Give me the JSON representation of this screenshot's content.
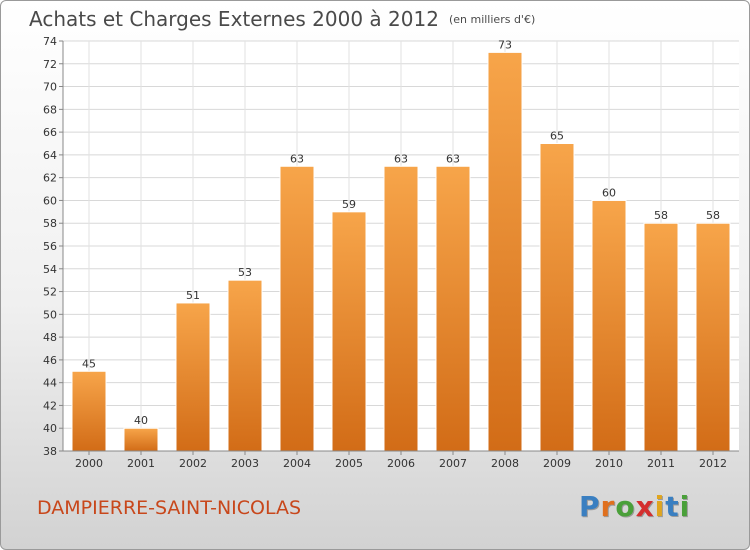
{
  "header": {
    "title": "Achats et Charges Externes 2000 à 2012",
    "unit": "(en milliers d'€)"
  },
  "footer": {
    "commune": "DAMPIERRE-SAINT-NICOLAS",
    "logo_letters": [
      "P",
      "r",
      "o",
      "x",
      "i",
      "t",
      "i"
    ],
    "logo_colors": [
      "#3a7fc1",
      "#e0701e",
      "#4aa03a",
      "#d42f2f",
      "#e0a51e",
      "#3a7fc1",
      "#4aa03a"
    ]
  },
  "colors": {
    "bar_top": "#f7a54a",
    "bar_bottom": "#d26c17",
    "title": "#4a4a4a",
    "commune": "#c8471b"
  },
  "chart_data": {
    "type": "bar",
    "title": "Achats et Charges Externes 2000 à 2012",
    "subtitle": "(en milliers d'€)",
    "xlabel": "",
    "ylabel": "",
    "categories": [
      "2000",
      "2001",
      "2002",
      "2003",
      "2004",
      "2005",
      "2006",
      "2007",
      "2008",
      "2009",
      "2010",
      "2011",
      "2012"
    ],
    "values": [
      45,
      40,
      51,
      53,
      63,
      59,
      63,
      63,
      73,
      65,
      60,
      58,
      58
    ],
    "ylim": [
      38,
      74
    ],
    "yticks": [
      38,
      40,
      42,
      44,
      46,
      48,
      50,
      52,
      54,
      56,
      58,
      60,
      62,
      64,
      66,
      68,
      70,
      72,
      74
    ],
    "grid": true,
    "legend": "none"
  }
}
